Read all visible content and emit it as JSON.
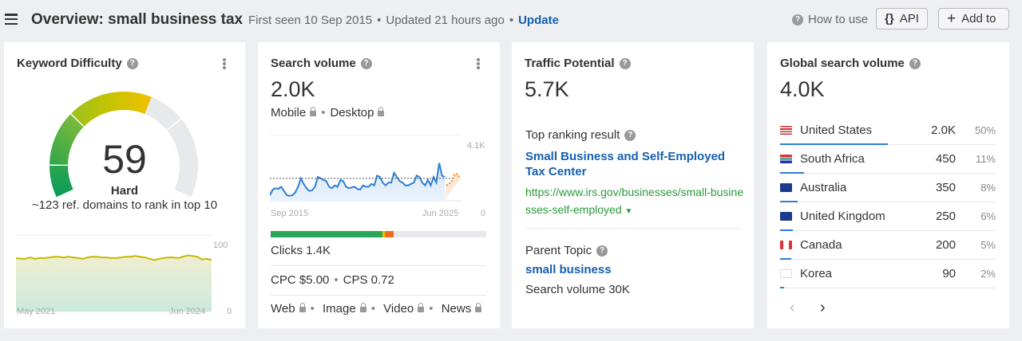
{
  "header": {
    "title": "Overview: small business tax",
    "first_seen": "First seen 10 Sep 2015",
    "updated": "Updated 21 hours ago",
    "update_link": "Update",
    "how_to_use": "How to use",
    "api_label": "API",
    "api_icon": "{}",
    "add_to_label": "Add to"
  },
  "kd": {
    "title": "Keyword Difficulty",
    "score": "59",
    "score_value": 59,
    "label": "Hard",
    "ref_domains": "~123 ref. domains to rank in top 10",
    "chart_start": "May 2021",
    "chart_end": "Jun 2024",
    "y_max": "100",
    "y_min": "0"
  },
  "sv": {
    "title": "Search volume",
    "value": "2.0K",
    "mobile": "Mobile",
    "desktop": "Desktop",
    "chart_start": "Sep 2015",
    "chart_end": "Jun 2025",
    "y_max": "4.1K",
    "y_min": "0",
    "clicks": "Clicks 1.4K",
    "cpc": "CPC $5.00",
    "cps": "CPS 0.72",
    "serp_types": [
      "Web",
      "Image",
      "Video",
      "News"
    ],
    "click_bar": {
      "organic_pct": 52,
      "paid_pct": 1,
      "other_pct": 4
    }
  },
  "tp": {
    "title": "Traffic Potential",
    "value": "5.7K",
    "top_ranking_label": "Top ranking result",
    "top_title": "Small Business and Self-Employed Tax Center",
    "top_url": "https://www.irs.gov/businesses/small-businesses-self-employed",
    "parent_label": "Parent Topic",
    "parent_topic": "small business",
    "parent_volume": "Search volume 30K"
  },
  "gsv": {
    "title": "Global search volume",
    "value": "4.0K",
    "countries": [
      {
        "name": "United States",
        "volume": "2.0K",
        "pct": "50%",
        "share": 50,
        "flag": "us"
      },
      {
        "name": "South Africa",
        "volume": "450",
        "pct": "11%",
        "share": 11,
        "flag": "za"
      },
      {
        "name": "Australia",
        "volume": "350",
        "pct": "8%",
        "share": 8,
        "flag": "au"
      },
      {
        "name": "United Kingdom",
        "volume": "250",
        "pct": "6%",
        "share": 6,
        "flag": "gb"
      },
      {
        "name": "Canada",
        "volume": "200",
        "pct": "5%",
        "share": 5,
        "flag": "ca"
      },
      {
        "name": "Korea",
        "volume": "90",
        "pct": "2%",
        "share": 2,
        "flag": "kr"
      }
    ]
  },
  "chart_data": [
    {
      "type": "area",
      "title": "Keyword Difficulty history",
      "x_start": "May 2021",
      "x_end": "Jun 2024",
      "ylim": [
        0,
        100
      ],
      "values": [
        78,
        77,
        77,
        79,
        77,
        78,
        78,
        79,
        80,
        80,
        79,
        80,
        79,
        78,
        77,
        79,
        80,
        80,
        79,
        79,
        78,
        78,
        79,
        80,
        80,
        81,
        80,
        79,
        77,
        75,
        77,
        78,
        79,
        79,
        78,
        80,
        82,
        81,
        80,
        76,
        77,
        75
      ]
    },
    {
      "type": "area",
      "title": "Search volume history",
      "x_start": "Sep 2015",
      "x_end": "Jun 2025",
      "ylim": [
        0,
        4100
      ],
      "average": 1600,
      "values": [
        400,
        800,
        900,
        850,
        1000,
        700,
        400,
        350,
        400,
        600,
        1000,
        1600,
        1200,
        900,
        700,
        750,
        1000,
        1700,
        1600,
        1500,
        1400,
        1000,
        900,
        1100,
        1000,
        1500,
        1400,
        1000,
        900,
        950,
        1000,
        850,
        800,
        1100,
        1000,
        1000,
        1200,
        1100,
        1800,
        1700,
        1300,
        1100,
        1300,
        1300,
        2000,
        1700,
        1400,
        1300,
        1100,
        1100,
        1200,
        1300,
        1800,
        1700,
        1300,
        1100,
        1500,
        1100,
        1700,
        1300,
        2700,
        1800,
        1700
      ],
      "forecast": [
        1100,
        1200,
        1400,
        1900,
        1900,
        1600
      ]
    }
  ]
}
